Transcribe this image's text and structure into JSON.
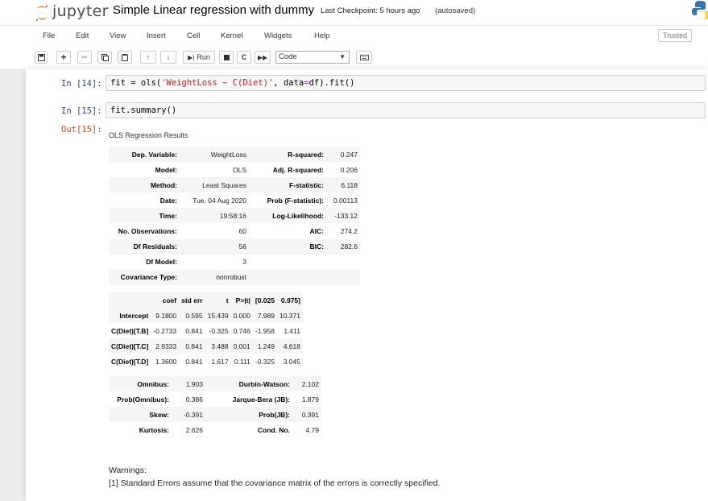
{
  "header": {
    "logo_text": "jupyter",
    "notebook_title": "Simple Linear regression with dummy",
    "checkpoint": "Last Checkpoint: 5 hours ago",
    "autosave": "(autosaved)"
  },
  "menubar": {
    "items": [
      "File",
      "Edit",
      "View",
      "Insert",
      "Cell",
      "Kernel",
      "Widgets",
      "Help"
    ],
    "trusted": "Trusted"
  },
  "toolbar": {
    "run_label": "Run",
    "cell_type": "Code"
  },
  "cells": [
    {
      "prompt": "In [14]:",
      "code_pre": "fit = ols(",
      "code_str": "'WeightLoss ~ C(Diet)'",
      "code_post": ", data",
      "code_eq": "=",
      "code_end": "df).fit()"
    },
    {
      "prompt": "In [15]:",
      "code": "fit.summary()"
    }
  ],
  "output": {
    "prompt": "Out[15]:",
    "title": "OLS Regression Results",
    "table1": [
      [
        "Dep. Variable:",
        "WeightLoss",
        "R-squared:",
        "0.247"
      ],
      [
        "Model:",
        "OLS",
        "Adj. R-squared:",
        "0.206"
      ],
      [
        "Method:",
        "Least Squares",
        "F-statistic:",
        "6.118"
      ],
      [
        "Date:",
        "Tue, 04 Aug 2020",
        "Prob (F-statistic):",
        "0.00113"
      ],
      [
        "Time:",
        "19:58:16",
        "Log-Likelihood:",
        "-133.12"
      ],
      [
        "No. Observations:",
        "60",
        "AIC:",
        "274.2"
      ],
      [
        "Df Residuals:",
        "56",
        "BIC:",
        "282.6"
      ],
      [
        "Df Model:",
        "3",
        "",
        ""
      ],
      [
        "Covariance Type:",
        "nonrobust",
        "",
        ""
      ]
    ],
    "table2_header": [
      "",
      "coef",
      "std err",
      "t",
      "P>|t|",
      "[0.025",
      "0.975]"
    ],
    "table2": [
      [
        "Intercept",
        "9.1800",
        "0.595",
        "15.439",
        "0.000",
        "7.989",
        "10.371"
      ],
      [
        "C(Diet)[T.B]",
        "-0.2733",
        "0.841",
        "-0.325",
        "0.746",
        "-1.958",
        "1.411"
      ],
      [
        "C(Diet)[T.C]",
        "2.9333",
        "0.841",
        "3.488",
        "0.001",
        "1.249",
        "4.618"
      ],
      [
        "C(Diet)[T.D]",
        "1.3600",
        "0.841",
        "1.617",
        "0.111",
        "-0.325",
        "3.045"
      ]
    ],
    "table3": [
      [
        "Omnibus:",
        "1.903",
        "Durbin-Watson:",
        "2.102"
      ],
      [
        "Prob(Omnibus):",
        "0.386",
        "Jarque-Bera (JB):",
        "1.879"
      ],
      [
        "Skew:",
        "-0.391",
        "Prob(JB):",
        "0.391"
      ],
      [
        "Kurtosis:",
        "2.626",
        "Cond. No.",
        "4.79"
      ]
    ],
    "warnings_title": "Warnings:",
    "warnings": [
      "[1] Standard Errors assume that the covariance matrix of the errors is correctly specified."
    ]
  },
  "colors": {
    "jupyter_orange": "#f37726",
    "prompt_in": "#303f9f",
    "prompt_out": "#d84315"
  }
}
